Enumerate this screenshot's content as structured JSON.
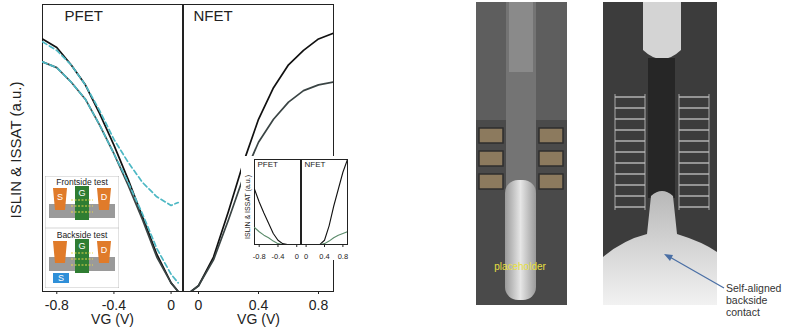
{
  "chart_data": [
    {
      "type": "line",
      "title": "PFET",
      "xlabel": "VG (V)",
      "ylabel": "ISLIN & ISSAT (a.u.)",
      "xlim": [
        -0.9,
        0.08
      ],
      "xticks": [
        -0.8,
        -0.4,
        0
      ],
      "ylim": [
        0,
        1
      ],
      "tick_labels": "x",
      "x": [
        -0.9,
        -0.8,
        -0.7,
        -0.6,
        -0.5,
        -0.4,
        -0.3,
        -0.2,
        -0.1,
        0,
        0.05
      ],
      "series": [
        {
          "color": "#111111",
          "line_style": "solid",
          "values": [
            0.88,
            0.85,
            0.79,
            0.72,
            0.62,
            0.51,
            0.39,
            0.26,
            0.13,
            0.03,
            0.0
          ]
        },
        {
          "color": "#3a4444",
          "line_style": "solid",
          "values": [
            0.8,
            0.78,
            0.73,
            0.67,
            0.58,
            0.48,
            0.37,
            0.25,
            0.12,
            0.03,
            0.0
          ]
        },
        {
          "color": "#4db8c4",
          "line_style": "dashed",
          "values": [
            0.87,
            0.84,
            0.79,
            0.72,
            0.63,
            0.53,
            0.45,
            0.38,
            0.33,
            0.3,
            0.31
          ]
        },
        {
          "color": "#4db8c4",
          "line_style": "dashed",
          "values": [
            0.8,
            0.78,
            0.73,
            0.67,
            0.58,
            0.48,
            0.38,
            0.27,
            0.15,
            0.06,
            0.03
          ]
        }
      ]
    },
    {
      "type": "line",
      "title": "NFET",
      "xlabel": "VG (V)",
      "xlim": [
        -0.1,
        0.9
      ],
      "xticks": [
        0,
        0.4,
        0.8
      ],
      "ylim": [
        0,
        1
      ],
      "tick_labels": "x",
      "x": [
        -0.05,
        0,
        0.1,
        0.2,
        0.3,
        0.4,
        0.5,
        0.6,
        0.7,
        0.8,
        0.9
      ],
      "series": [
        {
          "color": "#111111",
          "line_style": "solid",
          "values": [
            0.0,
            0.02,
            0.12,
            0.28,
            0.45,
            0.6,
            0.71,
            0.79,
            0.84,
            0.88,
            0.9
          ]
        },
        {
          "color": "#3a4444",
          "line_style": "solid",
          "values": [
            0.0,
            0.02,
            0.11,
            0.25,
            0.4,
            0.52,
            0.6,
            0.66,
            0.7,
            0.72,
            0.73
          ]
        }
      ]
    },
    {
      "type": "line",
      "title": "PFET",
      "ylabel": "ISLIN & ISSAT (a.u.)",
      "xlim": [
        -0.9,
        0.08
      ],
      "xticks": [
        -0.8,
        -0.4,
        0
      ],
      "ylim": [
        0,
        1
      ],
      "tick_labels": "x",
      "x": [
        -0.9,
        -0.8,
        -0.7,
        -0.6,
        -0.5,
        -0.4,
        -0.3,
        -0.2,
        0,
        0.05
      ],
      "series": [
        {
          "color": "#111111",
          "line_style": "solid",
          "values": [
            0.65,
            0.5,
            0.37,
            0.25,
            0.13,
            0.05,
            0.01,
            0.0,
            0.0,
            0.0
          ]
        },
        {
          "color": "#5a8a6a",
          "line_style": "solid",
          "values": [
            0.2,
            0.15,
            0.11,
            0.08,
            0.04,
            0.01,
            0.0,
            0.0,
            0.0,
            0.0
          ]
        }
      ]
    },
    {
      "type": "line",
      "title": "NFET",
      "xlim": [
        -0.1,
        0.9
      ],
      "xticks": [
        0,
        0.4,
        0.8
      ],
      "ylim": [
        0,
        1
      ],
      "tick_labels": "x",
      "x": [
        -0.05,
        0,
        0.2,
        0.3,
        0.4,
        0.5,
        0.6,
        0.7,
        0.8,
        0.9
      ],
      "series": [
        {
          "color": "#111111",
          "line_style": "solid",
          "values": [
            0.0,
            0.0,
            0.0,
            0.0,
            0.05,
            0.22,
            0.45,
            0.65,
            0.85,
            1.0
          ]
        },
        {
          "color": "#5a8a6a",
          "line_style": "solid",
          "values": [
            0.0,
            0.0,
            0.0,
            0.0,
            0.01,
            0.04,
            0.08,
            0.11,
            0.13,
            0.15
          ]
        }
      ]
    }
  ],
  "schematic": [
    {
      "title": "Frontside test",
      "labels": [
        "S",
        "G",
        "D"
      ]
    },
    {
      "title": "Backside test",
      "labels": [
        "G",
        "D",
        "S"
      ]
    }
  ],
  "images": [
    {
      "label": "placeholder"
    },
    {
      "label": "Self-aligned backside contact"
    }
  ]
}
